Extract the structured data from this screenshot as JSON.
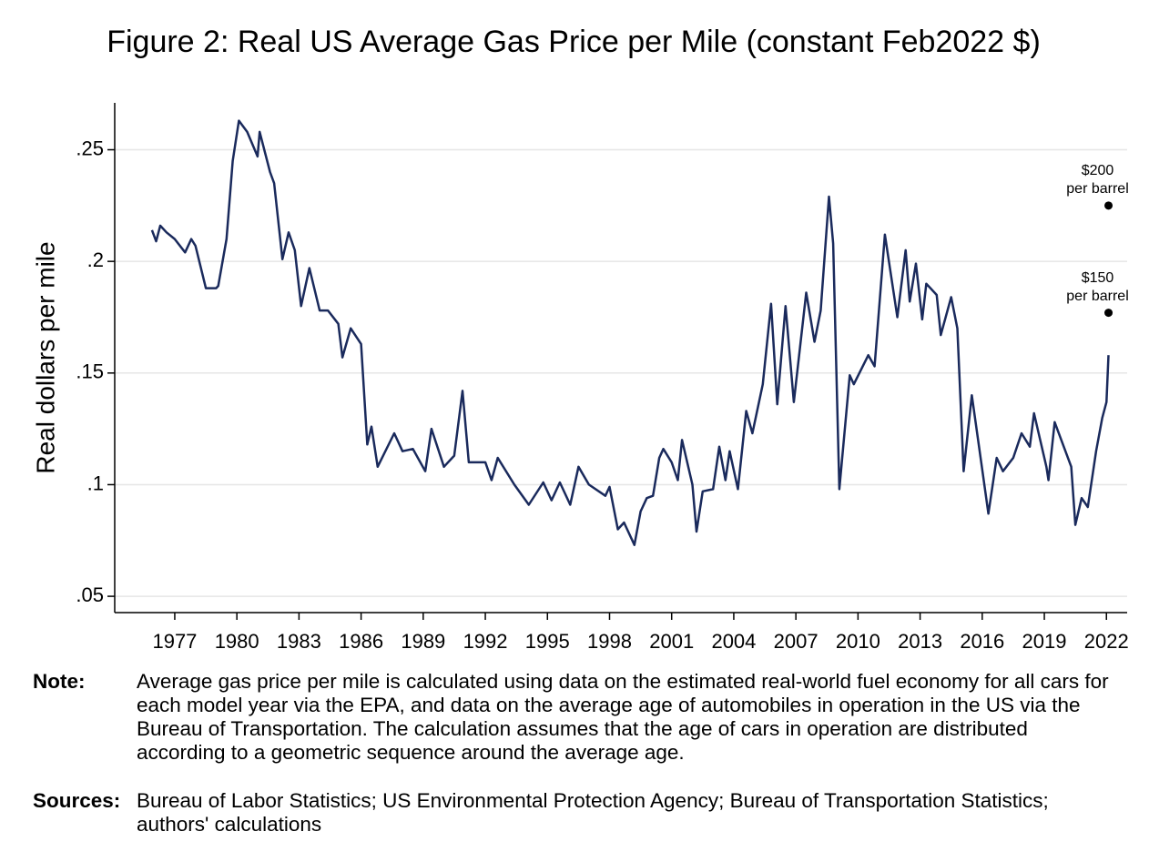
{
  "chart_data": {
    "type": "line",
    "title": "Figure 2: Real US Average Gas Price per Mile (constant Feb2022 $)",
    "y_label": "Real dollars per mile",
    "color": "#1a2a5c",
    "x": [
      1975.9,
      1976.1,
      1976.3,
      1976.6,
      1977.0,
      1977.5,
      1977.8,
      1978.0,
      1978.5,
      1979.0,
      1979.1,
      1979.5,
      1979.8,
      1980.1,
      1980.5,
      1981.0,
      1981.1,
      1981.6,
      1981.8,
      1982.2,
      1982.5,
      1982.8,
      1983.1,
      1983.5,
      1984.0,
      1984.4,
      1984.9,
      1985.1,
      1985.5,
      1986.0,
      1986.3,
      1986.5,
      1986.8,
      1987.6,
      1988.0,
      1988.5,
      1989.1,
      1989.4,
      1990.0,
      1990.5,
      1990.9,
      1991.2,
      1992.0,
      1992.3,
      1992.6,
      1993.4,
      1994.1,
      1994.8,
      1995.2,
      1995.6,
      1996.1,
      1996.5,
      1997.0,
      1997.8,
      1998.0,
      1998.4,
      1998.7,
      1999.2,
      1999.5,
      1999.8,
      2000.1,
      2000.4,
      2000.6,
      2001.0,
      2001.3,
      2001.5,
      2002.0,
      2002.2,
      2002.5,
      2003.0,
      2003.3,
      2003.6,
      2003.8,
      2004.2,
      2004.6,
      2004.9,
      2005.4,
      2005.8,
      2006.1,
      2006.5,
      2006.9,
      2007.5,
      2007.9,
      2008.2,
      2008.6,
      2008.8,
      2009.1,
      2009.6,
      2009.8,
      2010.5,
      2010.8,
      2011.3,
      2011.9,
      2012.3,
      2012.5,
      2012.8,
      2013.1,
      2013.3,
      2013.8,
      2014.0,
      2014.5,
      2014.8,
      2015.1,
      2015.5,
      2015.8,
      2016.3,
      2016.7,
      2017.0,
      2017.5,
      2017.9,
      2018.3,
      2018.5,
      2019.1,
      2019.2,
      2019.5,
      2020.3,
      2020.5,
      2020.8,
      2021.1,
      2021.5,
      2021.8,
      2022.0,
      2022.1
    ],
    "values": [
      0.214,
      0.209,
      0.216,
      0.213,
      0.21,
      0.204,
      0.21,
      0.207,
      0.188,
      0.188,
      0.189,
      0.21,
      0.245,
      0.263,
      0.258,
      0.247,
      0.258,
      0.24,
      0.235,
      0.201,
      0.213,
      0.205,
      0.18,
      0.197,
      0.178,
      0.178,
      0.172,
      0.157,
      0.17,
      0.163,
      0.118,
      0.126,
      0.108,
      0.123,
      0.115,
      0.116,
      0.106,
      0.125,
      0.108,
      0.113,
      0.142,
      0.11,
      0.11,
      0.102,
      0.112,
      0.1,
      0.091,
      0.101,
      0.093,
      0.101,
      0.091,
      0.108,
      0.1,
      0.095,
      0.099,
      0.08,
      0.083,
      0.073,
      0.088,
      0.094,
      0.095,
      0.112,
      0.116,
      0.11,
      0.102,
      0.12,
      0.1,
      0.079,
      0.097,
      0.098,
      0.117,
      0.102,
      0.115,
      0.098,
      0.133,
      0.123,
      0.145,
      0.181,
      0.136,
      0.18,
      0.137,
      0.186,
      0.164,
      0.178,
      0.229,
      0.208,
      0.098,
      0.149,
      0.145,
      0.158,
      0.153,
      0.212,
      0.175,
      0.205,
      0.182,
      0.199,
      0.174,
      0.19,
      0.185,
      0.167,
      0.184,
      0.17,
      0.106,
      0.14,
      0.12,
      0.087,
      0.112,
      0.106,
      0.112,
      0.123,
      0.117,
      0.132,
      0.108,
      0.102,
      0.128,
      0.108,
      0.082,
      0.094,
      0.09,
      0.115,
      0.13,
      0.137,
      0.158
    ],
    "xlim": [
      1974.1,
      2023.0
    ],
    "xticks": [
      1977,
      1980,
      1983,
      1986,
      1989,
      1992,
      1995,
      1998,
      2001,
      2004,
      2007,
      2010,
      2013,
      2016,
      2019,
      2022
    ],
    "ylim": [
      0.0427,
      0.271
    ],
    "yticks": [
      {
        "value": 0.05,
        "label": ".05"
      },
      {
        "value": 0.1,
        "label": ".1"
      },
      {
        "value": 0.15,
        "label": ".15"
      },
      {
        "value": 0.2,
        "label": ".2"
      },
      {
        "value": 0.25,
        "label": ".25"
      }
    ],
    "grid": true,
    "annotations": [
      {
        "x": 2022.1,
        "y": 0.225,
        "lines": [
          "$200",
          "per barrel"
        ]
      },
      {
        "x": 2022.1,
        "y": 0.177,
        "lines": [
          "$150",
          "per barrel"
        ]
      }
    ]
  },
  "notes": [
    {
      "label": "Note:",
      "text": "Average gas price per mile is calculated using data on the estimated real-world fuel economy for all cars for each model year via the EPA, and data on the average age of automobiles in operation in the US via the Bureau of Transportation. The calculation assumes that the age of cars in operation are distributed according to a geometric sequence around the average age."
    },
    {
      "label": "Sources:",
      "text": "Bureau of Labor Statistics; US Environmental Protection Agency; Bureau of Transportation Statistics; authors' calculations"
    }
  ]
}
